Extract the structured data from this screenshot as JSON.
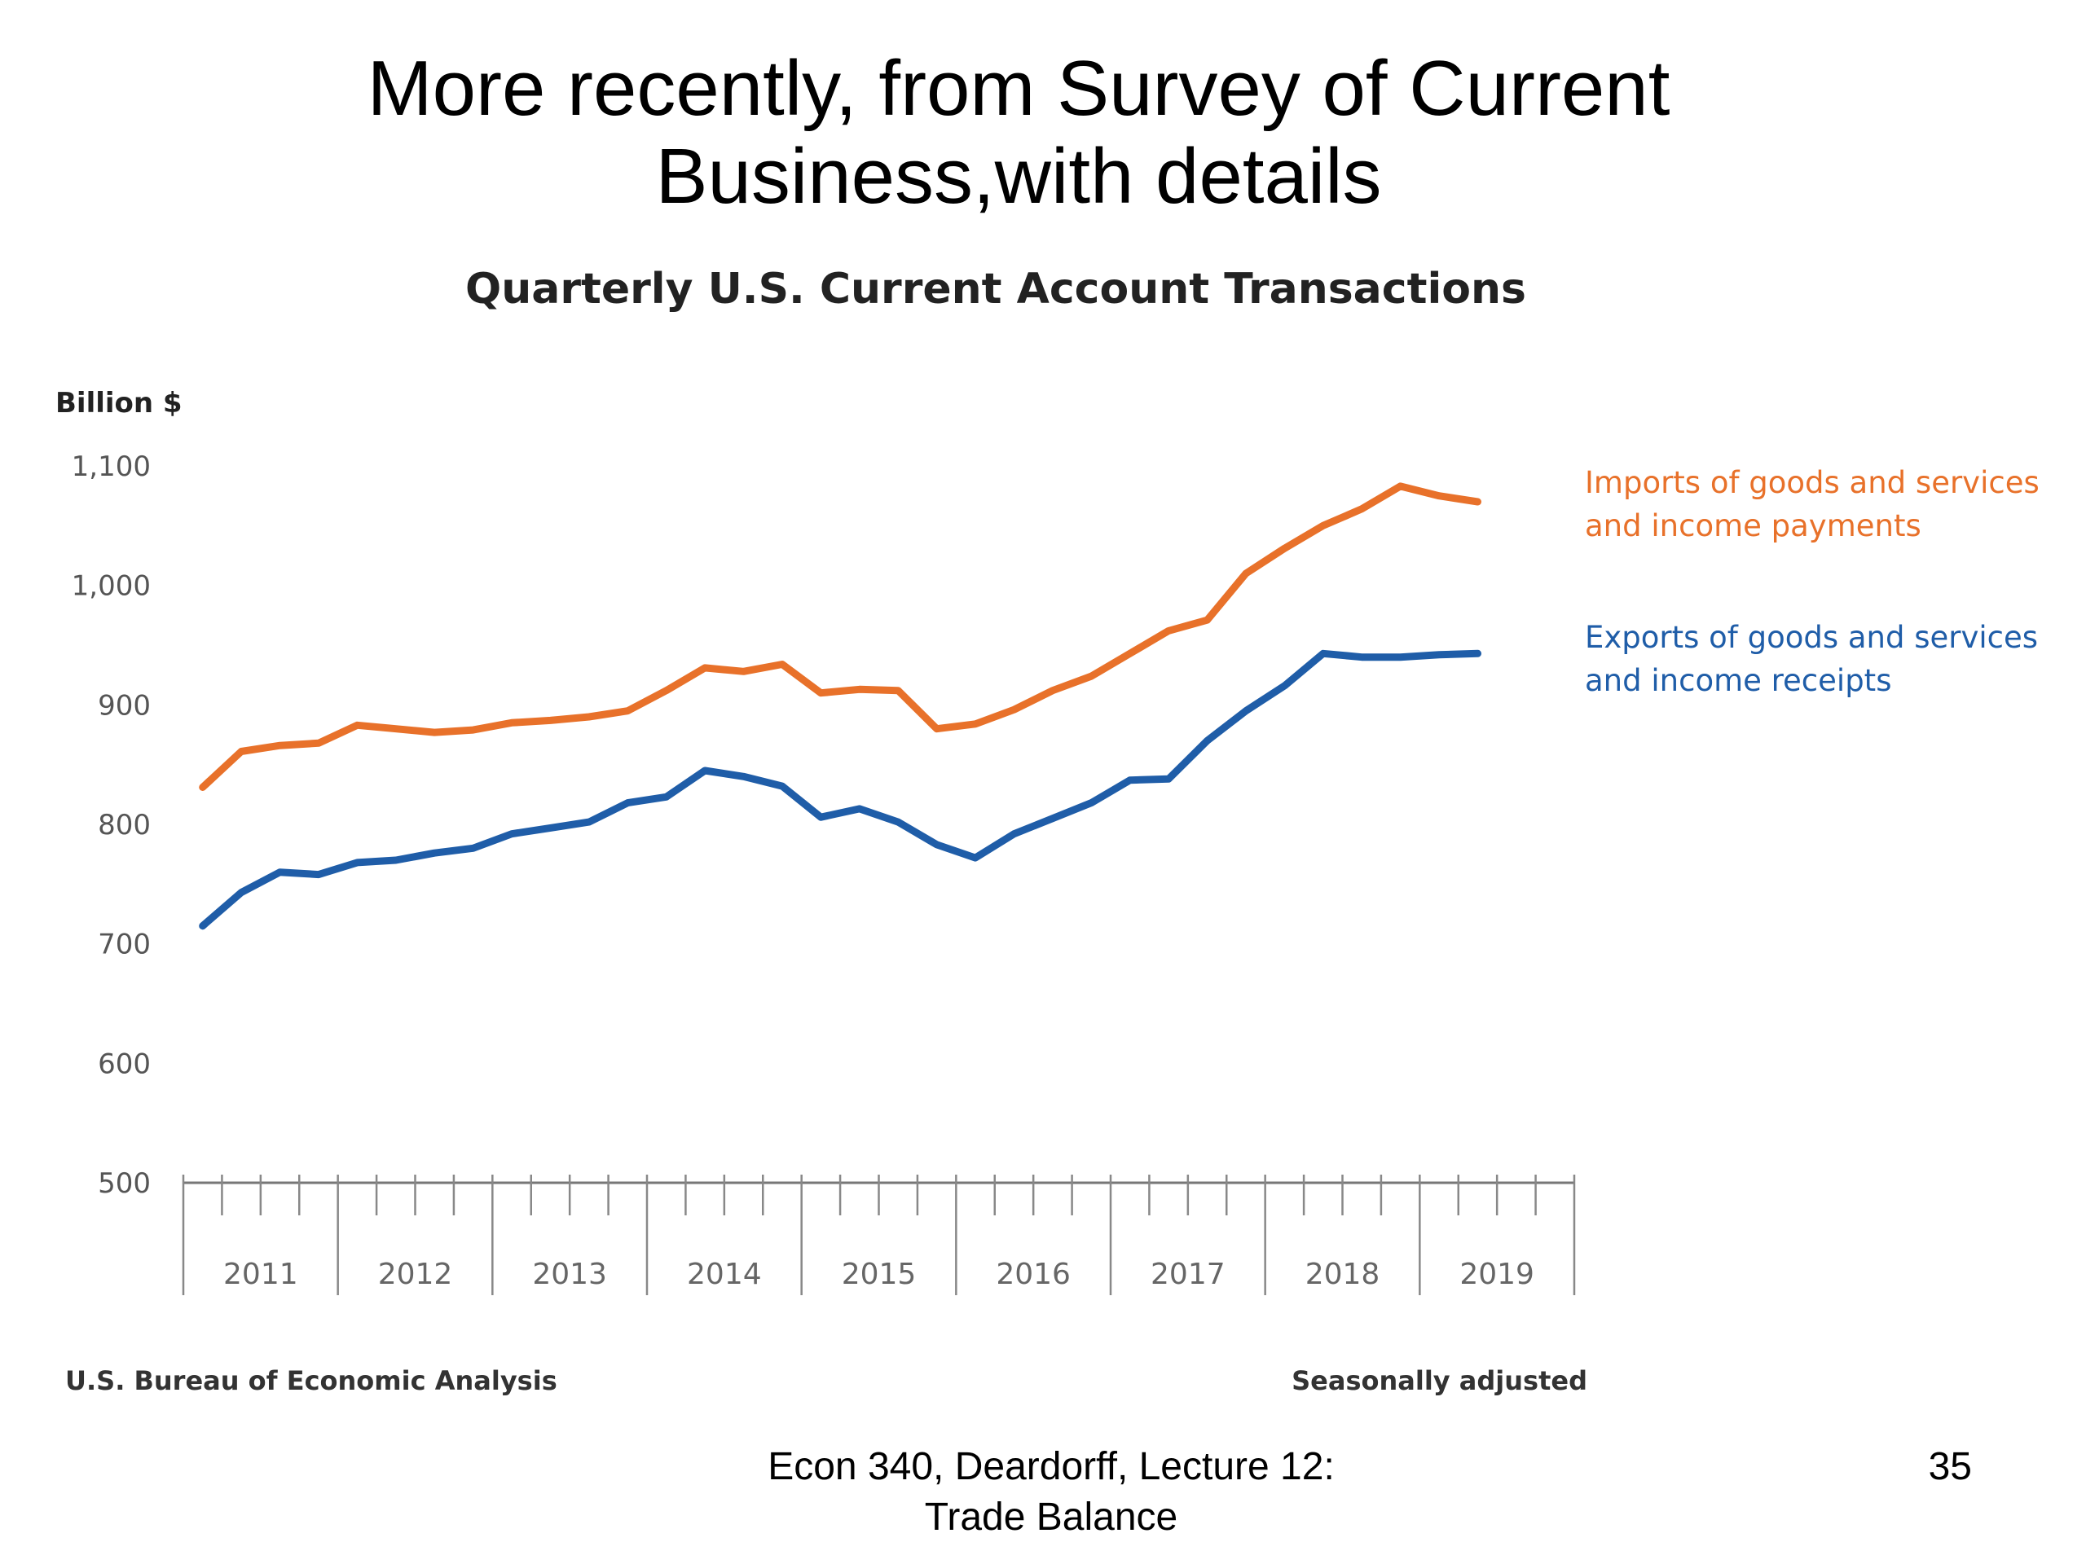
{
  "slide": {
    "title_line1": "More recently, from Survey of Current",
    "title_line2": "Business,with details",
    "footer_line1": "Econ 340, Deardorff, Lecture 12:",
    "footer_line2": "Trade Balance",
    "page_number": "35"
  },
  "chart_data": {
    "type": "line",
    "title": "Quarterly U.S. Current Account Transactions",
    "ylabel": "Billion $",
    "xlabel": "",
    "ylim": [
      500,
      1100
    ],
    "yticks": [
      {
        "value": 1100,
        "label": "1,100"
      },
      {
        "value": 1000,
        "label": "1,000"
      },
      {
        "value": 900,
        "label": "900"
      },
      {
        "value": 800,
        "label": "800"
      },
      {
        "value": 700,
        "label": "700"
      },
      {
        "value": 600,
        "label": "600"
      },
      {
        "value": 500,
        "label": "500"
      }
    ],
    "grid": false,
    "legend_position": "right",
    "years": [
      "2011",
      "2012",
      "2013",
      "2014",
      "2015",
      "2016",
      "2017",
      "2018",
      "2019"
    ],
    "quarters_per_year": 4,
    "x": [
      "2011Q1",
      "2011Q2",
      "2011Q3",
      "2011Q4",
      "2012Q1",
      "2012Q2",
      "2012Q3",
      "2012Q4",
      "2013Q1",
      "2013Q2",
      "2013Q3",
      "2013Q4",
      "2014Q1",
      "2014Q2",
      "2014Q3",
      "2014Q4",
      "2015Q1",
      "2015Q2",
      "2015Q3",
      "2015Q4",
      "2016Q1",
      "2016Q2",
      "2016Q3",
      "2016Q4",
      "2017Q1",
      "2017Q2",
      "2017Q3",
      "2017Q4",
      "2018Q1",
      "2018Q2",
      "2018Q3",
      "2018Q4",
      "2019Q1",
      "2019Q2"
    ],
    "series": [
      {
        "name": "Imports of goods and services and income payments",
        "legend_lines": [
          "Imports of goods and services",
          "and income payments"
        ],
        "color": "#E8712A",
        "values": [
          831,
          861,
          866,
          868,
          883,
          880,
          877,
          879,
          885,
          887,
          890,
          895,
          912,
          931,
          928,
          934,
          910,
          913,
          912,
          880,
          884,
          896,
          912,
          924,
          943,
          962,
          971,
          1010,
          1031,
          1050,
          1064,
          1083,
          1075,
          1070
        ]
      },
      {
        "name": "Exports of goods and services and income receipts",
        "legend_lines": [
          "Exports of goods and services",
          "and income receipts"
        ],
        "color": "#1F5DA8",
        "values": [
          715,
          743,
          760,
          758,
          768,
          770,
          776,
          780,
          792,
          797,
          802,
          818,
          823,
          845,
          840,
          832,
          806,
          813,
          802,
          783,
          772,
          792,
          805,
          818,
          837,
          838,
          870,
          895,
          916,
          943,
          940,
          940,
          942,
          943
        ]
      }
    ],
    "source_note": "U.S. Bureau of Economic Analysis",
    "adjustment_note": "Seasonally adjusted"
  }
}
